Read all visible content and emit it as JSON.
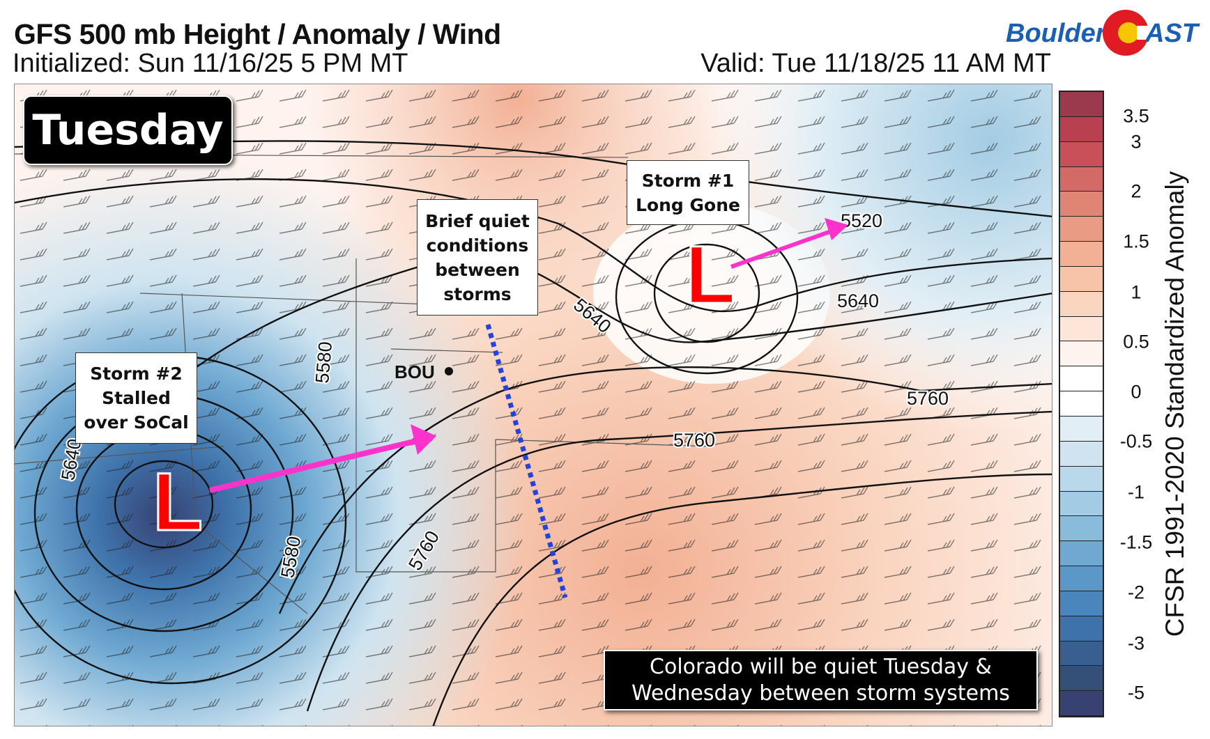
{
  "header": {
    "title": "GFS 500 mb Height / Anomaly / Wind",
    "initialized": "Initialized: Sun 11/16/25 5 PM MT",
    "valid": "Valid: Tue 11/18/25 11 AM MT"
  },
  "logo": {
    "text_left": "Boulder",
    "text_right": "AST",
    "colors": {
      "blue": "#1a5fb4",
      "red": "#e01b24",
      "yellow": "#f6c700"
    }
  },
  "map": {
    "day_label": "Tuesday",
    "station": "BOU",
    "contour_labels": [
      "5640",
      "5580",
      "5640",
      "5520",
      "5640",
      "5760",
      "5760",
      "5760",
      "5580"
    ],
    "lows": [
      {
        "symbol": "L",
        "name": "Storm #2"
      },
      {
        "symbol": "L",
        "name": "Storm #1"
      }
    ],
    "annotations": {
      "storm2": [
        "Storm #2",
        "Stalled",
        "over SoCal"
      ],
      "quiet": [
        "Brief quiet",
        "conditions",
        "between",
        "storms"
      ],
      "storm1": [
        "Storm #1",
        "Long Gone"
      ],
      "caption": [
        "Colorado will be quiet Tuesday &",
        "Wednesday between storm systems"
      ]
    },
    "colors": {
      "low": "#ff0000",
      "arrow": "#ff33cc",
      "dotted_line": "#2244dd"
    }
  },
  "colorbar": {
    "title": "CFSR 1991-2020 Standardized Anomaly",
    "ticks": [
      "3.5",
      "3",
      "2",
      "1.5",
      "1",
      "0.5",
      "0",
      "-0.5",
      "-1",
      "-1.5",
      "-2",
      "-3",
      "-5"
    ],
    "colors": [
      "#9b3a4d",
      "#b8404f",
      "#c85058",
      "#d46a66",
      "#e08576",
      "#e99c83",
      "#f2b094",
      "#f7c4aa",
      "#fad5c0",
      "#fde5d8",
      "#fef3ee",
      "#ffffff",
      "#ffffff",
      "#e1eef5",
      "#cfe4f0",
      "#b9d9ea",
      "#a3cce4",
      "#89bcdb",
      "#6fa9d2",
      "#5b98c8",
      "#4a86bd",
      "#3e72aa",
      "#385f90",
      "#345078",
      "#374172"
    ]
  }
}
